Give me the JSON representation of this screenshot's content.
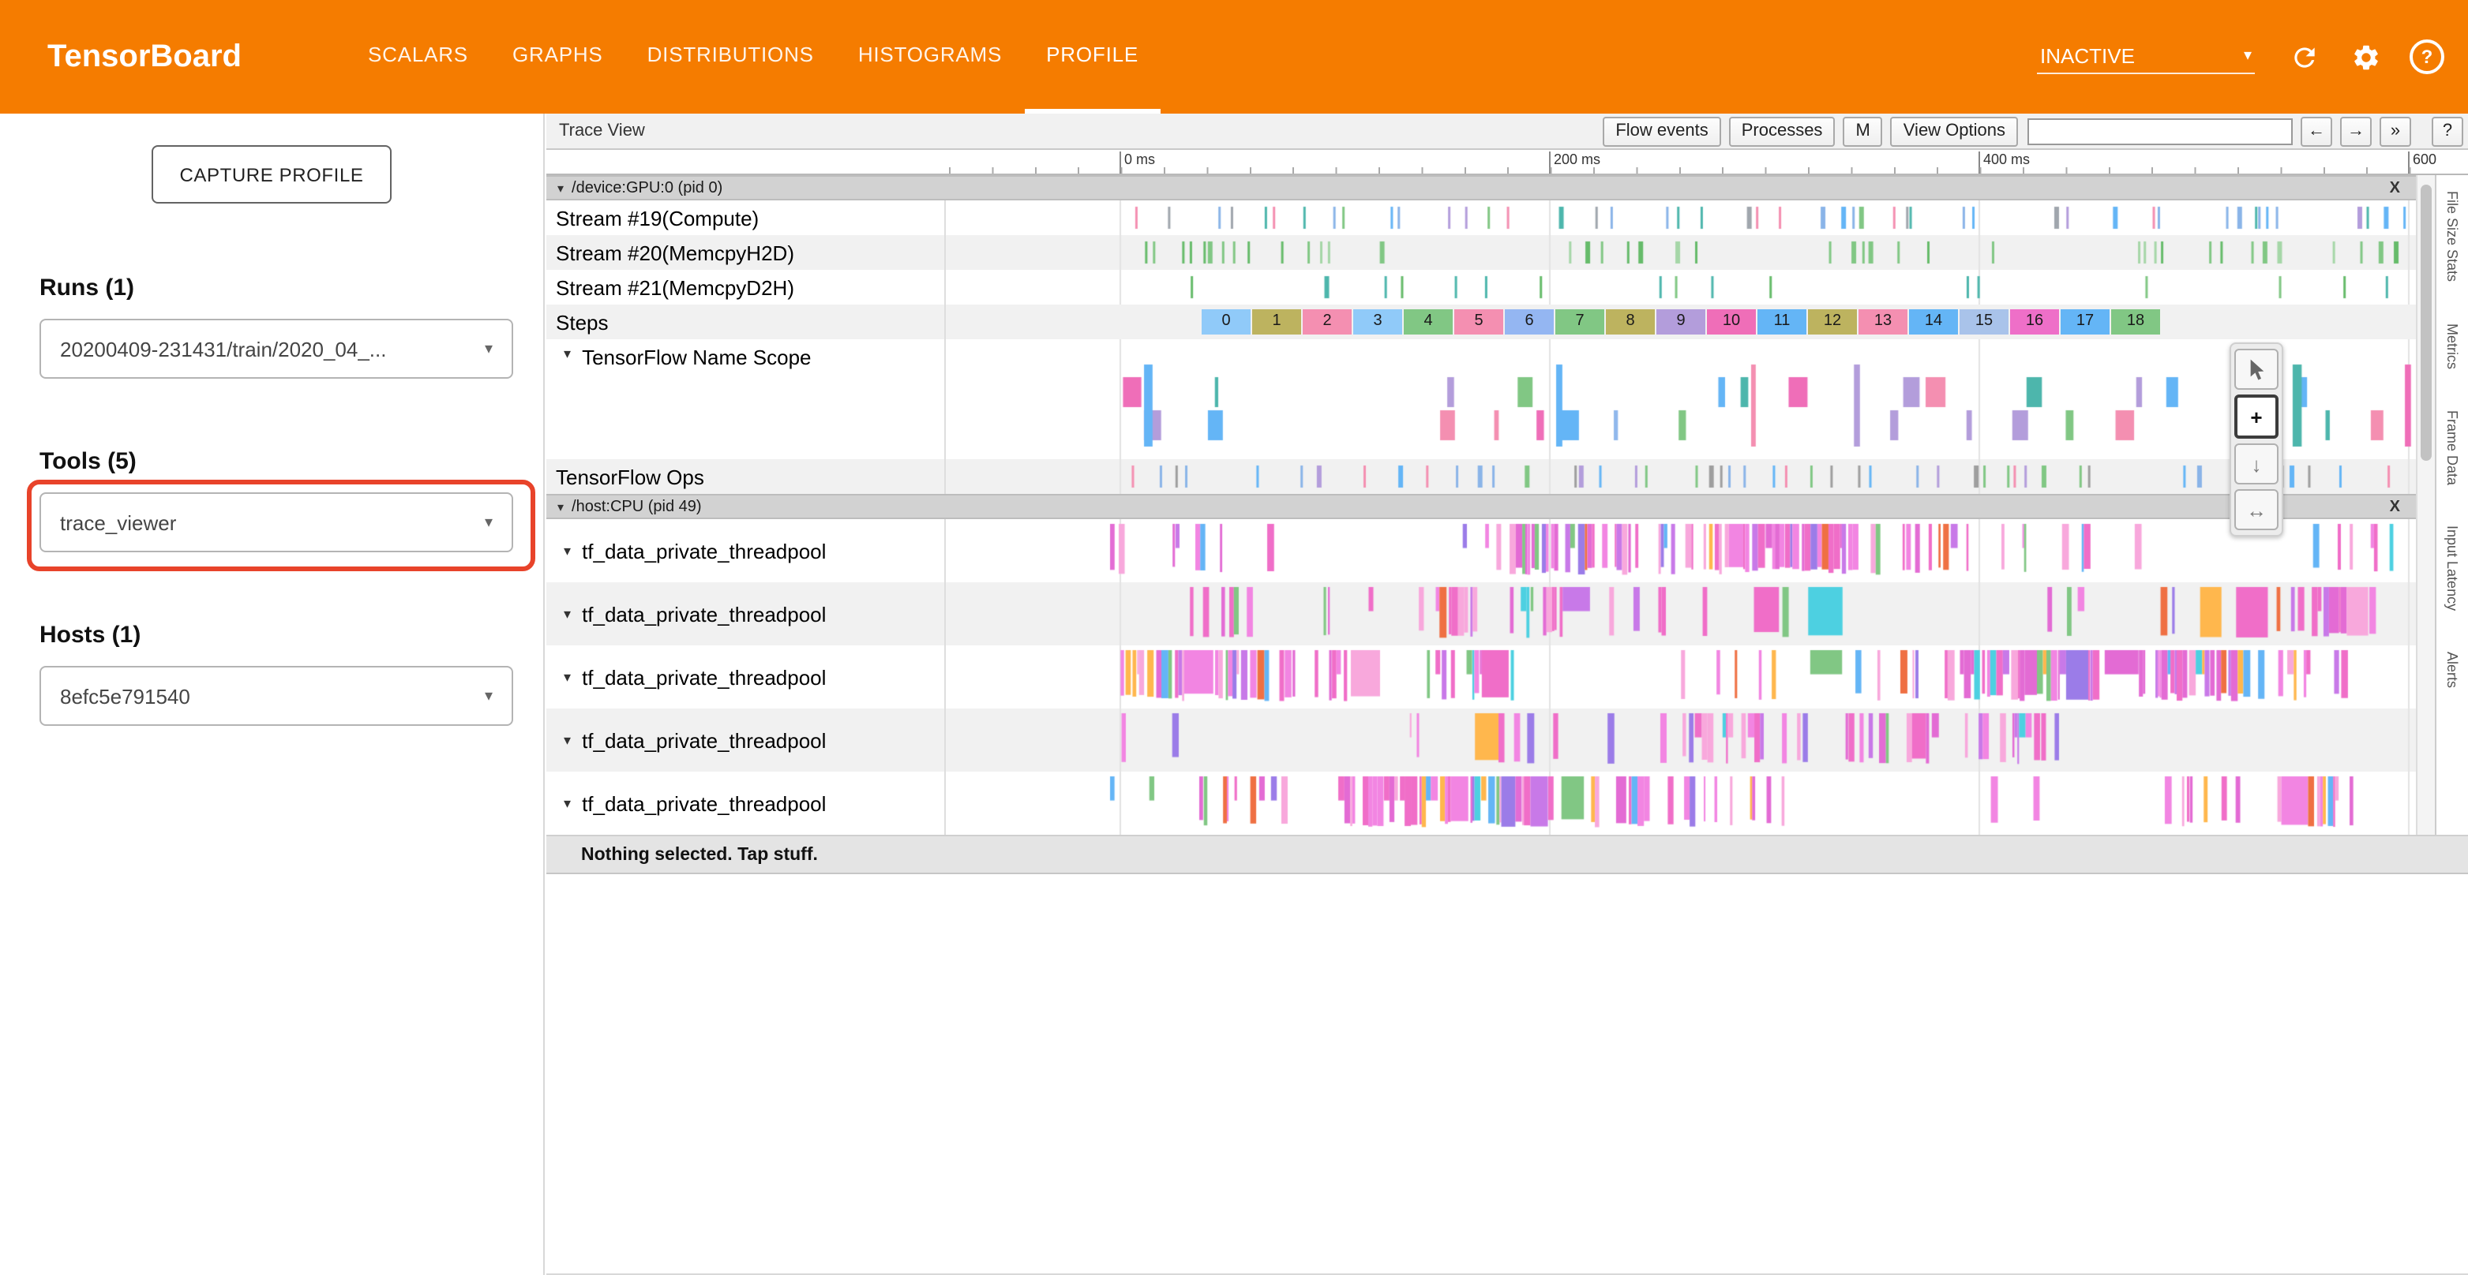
{
  "app": {
    "title": "TensorBoard"
  },
  "icons": {
    "caret_down": "▾",
    "close": "X",
    "zoom_plus": "+",
    "pan_down": "↓",
    "timing_arrows": "↔",
    "help_q": "?"
  },
  "header": {
    "nav": [
      "SCALARS",
      "GRAPHS",
      "DISTRIBUTIONS",
      "HISTOGRAMS",
      "PROFILE"
    ],
    "status": "INACTIVE"
  },
  "sidebar": {
    "capture_button": "CAPTURE PROFILE",
    "sections": [
      {
        "label": "Runs (1)",
        "value": "20200409-231431/train/2020_04_..."
      },
      {
        "label": "Tools (5)",
        "value": "trace_viewer"
      },
      {
        "label": "Hosts (1)",
        "value": "8efc5e791540"
      }
    ]
  },
  "trace": {
    "title": "Trace View",
    "toolbar_buttons": [
      "Flow events",
      "Processes",
      "M",
      "View Options"
    ],
    "nav_buttons": [
      "←",
      "→",
      "»",
      "?"
    ],
    "search_value": "",
    "ruler_labels": [
      "0 ms",
      "200 ms",
      "400 ms",
      "600"
    ],
    "processes": [
      {
        "title": "/device:GPU:0 (pid 0)"
      },
      {
        "title": "/host:CPU (pid 49)"
      }
    ],
    "gpu_rows": [
      "Stream #19(Compute)",
      "Stream #20(MemcpyH2D)",
      "Stream #21(MemcpyD2H)",
      "Steps",
      "TensorFlow Name Scope",
      "TensorFlow Ops"
    ],
    "steps": {
      "labels": [
        "0",
        "1",
        "2",
        "3",
        "4",
        "5",
        "6",
        "7",
        "8",
        "9",
        "10",
        "11",
        "12",
        "13",
        "14",
        "15",
        "16",
        "17",
        "18"
      ],
      "colors": [
        "#90caf9",
        "#bdb35f",
        "#f48fb1",
        "#90caf9",
        "#81c784",
        "#f48fb1",
        "#94b6f2",
        "#81c784",
        "#bdb35f",
        "#b39ddb",
        "#ef6eb8",
        "#64b5f6",
        "#bdb35f",
        "#f48fb1",
        "#64b5f6",
        "#a9c3ea",
        "#ee6fc8",
        "#64b5f6",
        "#81c784"
      ]
    },
    "cpu_rows": [
      "tf_data_private_threadpool",
      "tf_data_private_threadpool",
      "tf_data_private_threadpool",
      "tf_data_private_threadpool",
      "tf_data_private_threadpool"
    ],
    "side_tabs": [
      "File Size Stats",
      "Metrics",
      "Frame Data",
      "Input Latency",
      "Alerts"
    ],
    "selection_bar": "Nothing selected. Tap stuff.",
    "render": {
      "gridline_color": "#e3e3e3",
      "gridlines": [
        110,
        382,
        654,
        926
      ],
      "ruler_tick_base": 363,
      "ruler_tick_step": 272,
      "dense_palette": [
        [
          "#f06ec8",
          6
        ],
        [
          "#f285e2",
          5
        ],
        [
          "#f8a8dc",
          4
        ],
        [
          "#e36bd4",
          3
        ],
        [
          "#c879e8",
          2
        ],
        [
          "#9b7ce8",
          1.2
        ],
        [
          "#64b5f6",
          1.2
        ],
        [
          "#81c784",
          1.2
        ],
        [
          "#ffb74d",
          0.7
        ],
        [
          "#ef7043",
          0.5
        ],
        [
          "#4dd0e1",
          0.6
        ]
      ],
      "gpu": [
        {
          "kind": "sparse",
          "seed": 11,
          "density": 0.3,
          "range": [
            104,
            925
          ],
          "palette": [
            "#8ab4e8",
            "#a0a6ad",
            "#81c784",
            "#f48fb1",
            "#b39ddb",
            "#4db6ac",
            "#64b5f6"
          ]
        },
        {
          "kind": "sparse",
          "seed": 22,
          "density": 0.22,
          "range": [
            104,
            925
          ],
          "palette": [
            "#66bb6a",
            "#81c784",
            "#a5d6a7"
          ]
        },
        {
          "kind": "sparse",
          "seed": 33,
          "density": 0.12,
          "range": [
            104,
            925
          ],
          "palette": [
            "#66bb6a",
            "#4db6ac",
            "#81c784"
          ]
        },
        null,
        {
          "kind": "scope",
          "seed": 44,
          "density": 0.3,
          "range": [
            104,
            925
          ],
          "palette": [
            "#90b8ec",
            "#f48fb1",
            "#81c784",
            "#b39ddb",
            "#ef6eb8",
            "#64b5f6",
            "#4db6ac"
          ]
        },
        {
          "kind": "sparse",
          "seed": 55,
          "density": 0.3,
          "range": [
            104,
            925
          ],
          "palette": [
            "#8ab4e8",
            "#f48fb1",
            "#b39ddb",
            "#81c784",
            "#64b5f6",
            "#9e9e9e"
          ]
        }
      ],
      "cpu": [
        {
          "kind": "dense",
          "seed": 101,
          "density": 0.92,
          "range": [
            104,
            920
          ]
        },
        {
          "kind": "dense",
          "seed": 202,
          "density": 0.55,
          "range": [
            118,
            905
          ]
        },
        {
          "kind": "dense",
          "seed": 303,
          "density": 0.88,
          "range": [
            104,
            900
          ]
        },
        {
          "kind": "dense",
          "seed": 404,
          "density": 0.62,
          "range": [
            104,
            895
          ]
        },
        {
          "kind": "dense",
          "seed": 505,
          "density": 0.85,
          "range": [
            104,
            890
          ]
        }
      ]
    }
  }
}
